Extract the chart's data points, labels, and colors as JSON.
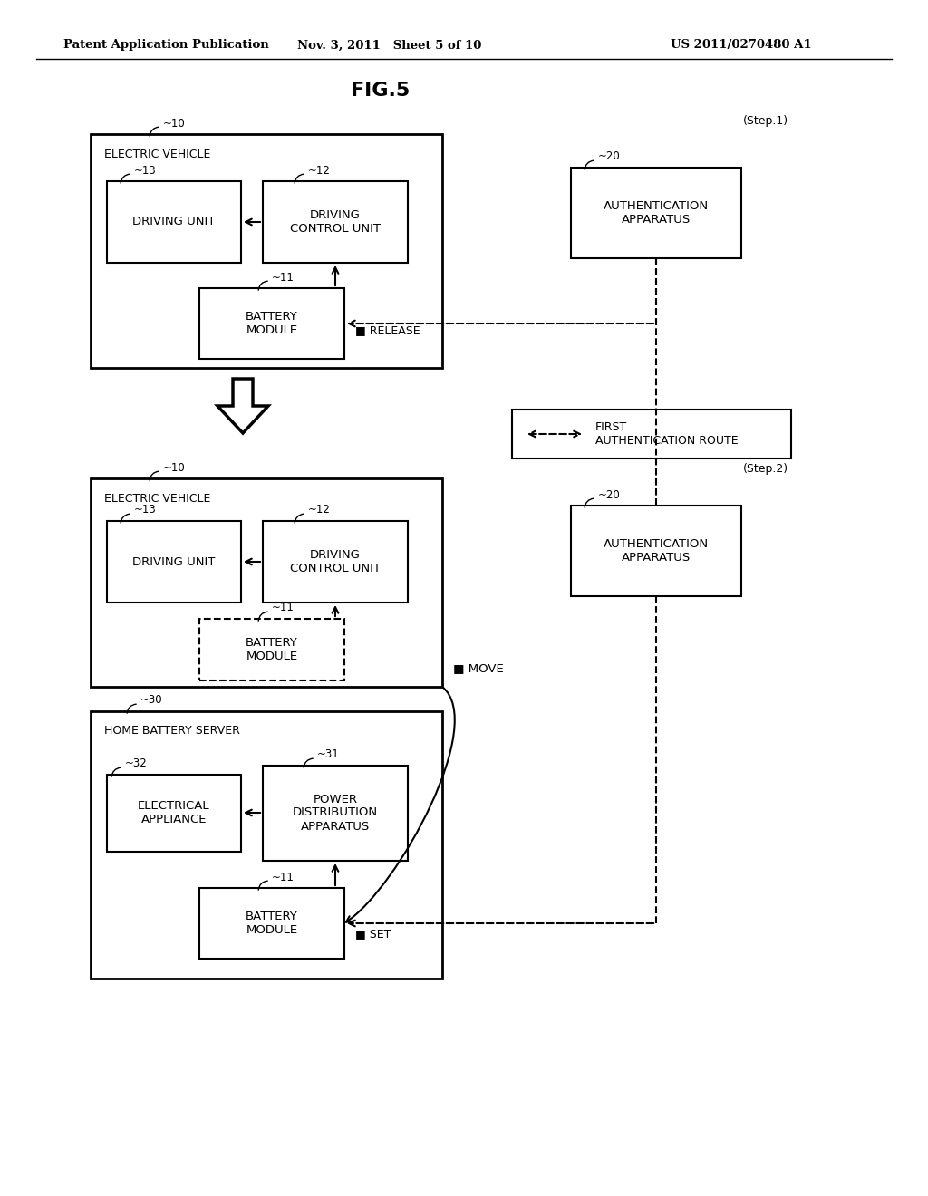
{
  "header_left": "Patent Application Publication",
  "header_mid": "Nov. 3, 2011   Sheet 5 of 10",
  "header_right": "US 2011/0270480 A1",
  "fig_title": "FIG.5",
  "bg_color": "#ffffff"
}
